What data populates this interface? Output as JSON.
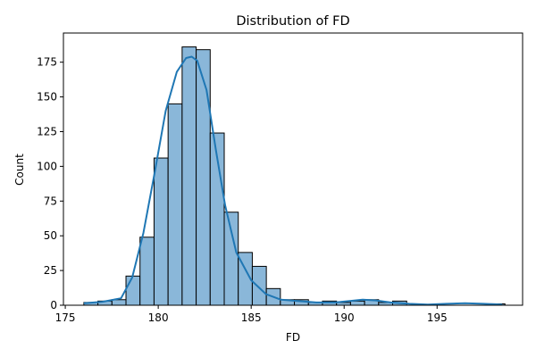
{
  "chart_data": {
    "type": "bar",
    "title": "Distribution of FD",
    "xlabel": "FD",
    "ylabel": "Count",
    "xlim": [
      174.9,
      199.6
    ],
    "ylim": [
      0,
      196
    ],
    "x_ticks": [
      175,
      180,
      185,
      190,
      195
    ],
    "y_ticks": [
      0,
      25,
      50,
      75,
      100,
      125,
      150,
      175
    ],
    "bin_width": 0.755,
    "bins": [
      {
        "x0": 176.0,
        "value": 2
      },
      {
        "x0": 176.755,
        "value": 3
      },
      {
        "x0": 177.51,
        "value": 4
      },
      {
        "x0": 178.265,
        "value": 21
      },
      {
        "x0": 179.02,
        "value": 49
      },
      {
        "x0": 179.775,
        "value": 106
      },
      {
        "x0": 180.53,
        "value": 145
      },
      {
        "x0": 181.285,
        "value": 186
      },
      {
        "x0": 182.04,
        "value": 184
      },
      {
        "x0": 182.795,
        "value": 124
      },
      {
        "x0": 183.55,
        "value": 67
      },
      {
        "x0": 184.305,
        "value": 38
      },
      {
        "x0": 185.06,
        "value": 28
      },
      {
        "x0": 185.815,
        "value": 12
      },
      {
        "x0": 186.57,
        "value": 4
      },
      {
        "x0": 187.325,
        "value": 4
      },
      {
        "x0": 188.08,
        "value": 2
      },
      {
        "x0": 188.835,
        "value": 3
      },
      {
        "x0": 189.59,
        "value": 2
      },
      {
        "x0": 190.345,
        "value": 3
      },
      {
        "x0": 191.1,
        "value": 4
      },
      {
        "x0": 191.855,
        "value": 2
      },
      {
        "x0": 192.61,
        "value": 3
      },
      {
        "x0": 193.365,
        "value": 0
      },
      {
        "x0": 194.12,
        "value": 0
      },
      {
        "x0": 194.875,
        "value": 0
      },
      {
        "x0": 195.63,
        "value": 0
      },
      {
        "x0": 196.385,
        "value": 0
      },
      {
        "x0": 197.14,
        "value": 0
      },
      {
        "x0": 197.895,
        "value": 1
      }
    ],
    "kde": {
      "x": [
        176.0,
        177.0,
        178.0,
        178.6,
        179.2,
        179.8,
        180.4,
        181.0,
        181.5,
        181.8,
        182.1,
        182.6,
        183.1,
        183.6,
        184.2,
        185.0,
        185.8,
        186.6,
        187.5,
        188.5,
        189.5,
        190.3,
        191.0,
        191.7,
        192.5,
        193.5,
        194.5,
        195.5,
        196.5,
        197.5,
        198.5
      ],
      "y": [
        1.5,
        2.5,
        5,
        20,
        52,
        95,
        140,
        168,
        178,
        179,
        176,
        155,
        112,
        72,
        38,
        18,
        8,
        4,
        3,
        2,
        2,
        3,
        4,
        3.5,
        2,
        1,
        0.5,
        1,
        1.5,
        1,
        0.5
      ]
    },
    "colors": {
      "bar_fill": "#8ab7d9",
      "bar_edge": "#000000",
      "kde_line": "#1f77b4"
    },
    "grid": false,
    "legend": "none"
  }
}
